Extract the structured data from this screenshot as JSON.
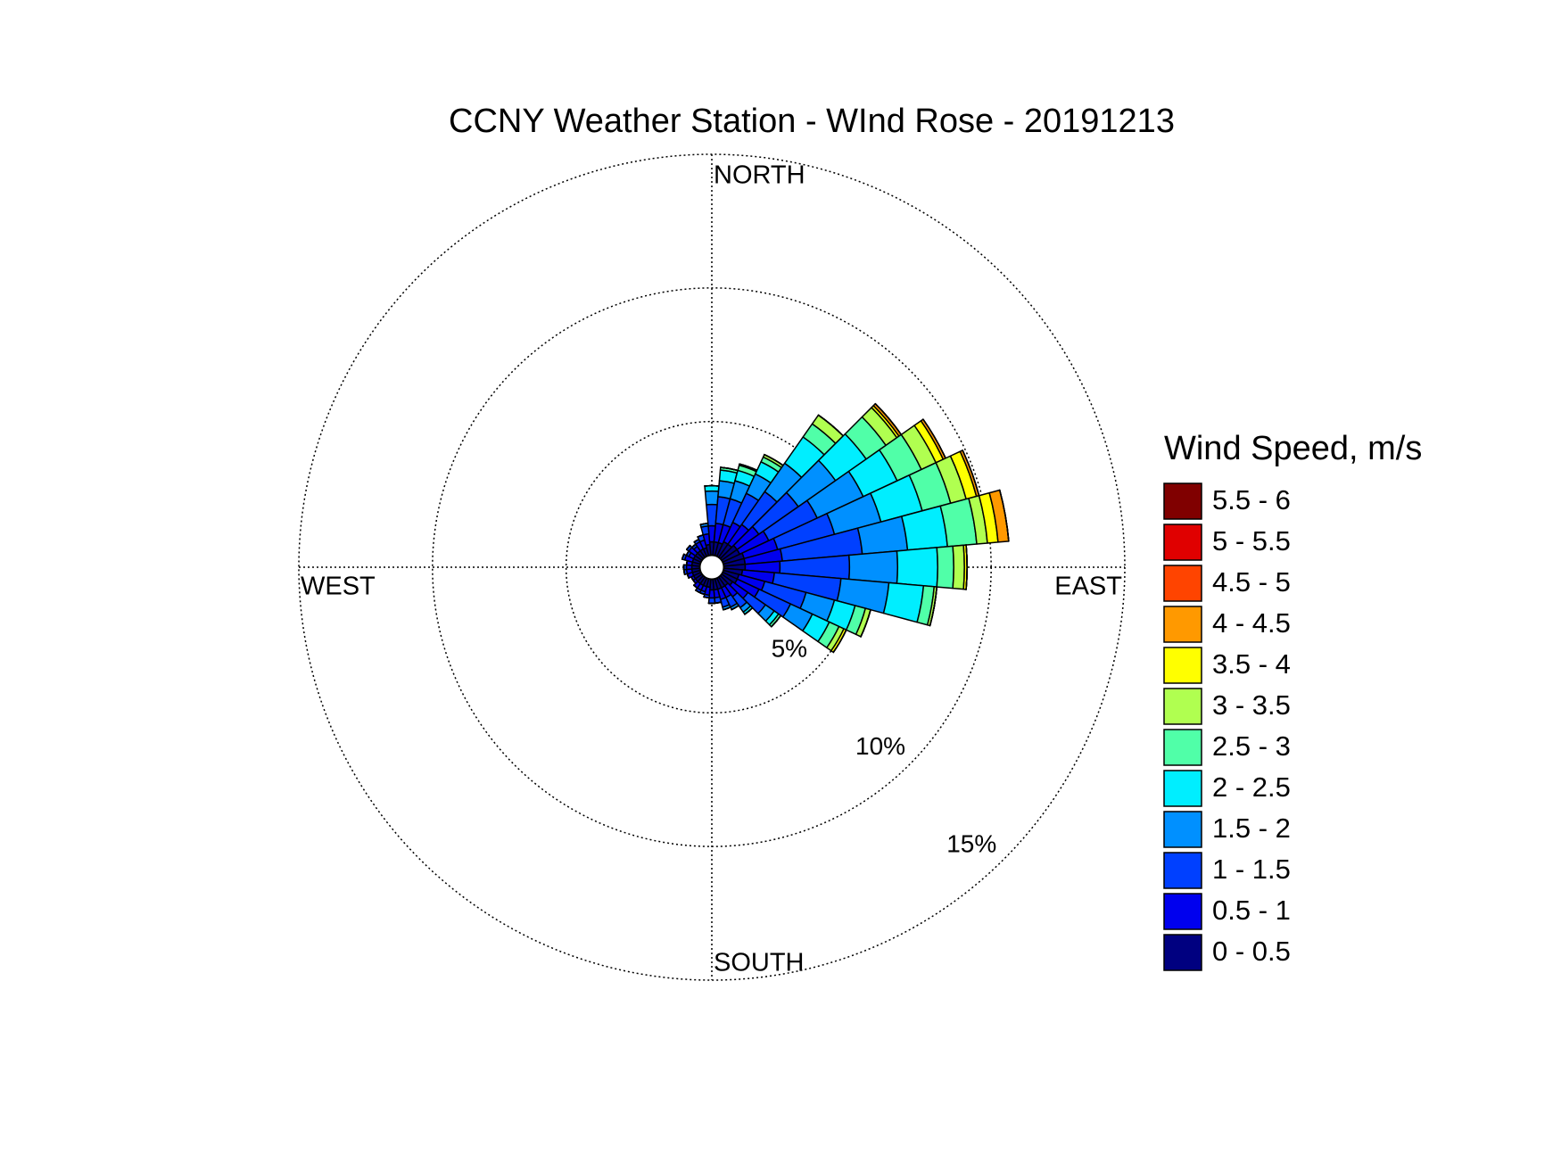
{
  "chart_data": {
    "type": "windrose",
    "title": "CCNY Weather Station - WInd Rose - 20191213",
    "direction_labels": {
      "north": "NORTH",
      "east": "EAST",
      "south": "SOUTH",
      "west": "WEST"
    },
    "legend_title": "Wind Speed, m/s",
    "theta": [
      0,
      10,
      20,
      30,
      40,
      50,
      60,
      70,
      80,
      90,
      100,
      110,
      120,
      130,
      140,
      150,
      160,
      170,
      180,
      190,
      200,
      210,
      220,
      230,
      240,
      250,
      260,
      270,
      280,
      290,
      300,
      310,
      320,
      330,
      340,
      350
    ],
    "rlim": [
      0,
      15
    ],
    "rticks": [
      {
        "value": 5,
        "label": "5%"
      },
      {
        "value": 10,
        "label": "10%"
      },
      {
        "value": 15,
        "label": "15%"
      }
    ],
    "grid": true,
    "series": [
      {
        "name": "0 - 0.5",
        "color": "#000080",
        "values": [
          0.5,
          0.5,
          0.5,
          0.6,
          0.6,
          0.7,
          0.7,
          0.8,
          0.8,
          0.8,
          0.7,
          0.6,
          0.6,
          0.5,
          0.4,
          0.4,
          0.4,
          0.4,
          0.4,
          0.3,
          0.3,
          0.3,
          0.3,
          0.3,
          0.3,
          0.3,
          0.3,
          0.3,
          0.3,
          0.3,
          0.3,
          0.3,
          0.3,
          0.3,
          0.3,
          0.4
        ]
      },
      {
        "name": "0.5 - 1",
        "color": "#0000ee",
        "values": [
          0.6,
          0.7,
          0.7,
          0.8,
          0.9,
          1.0,
          1.2,
          1.3,
          1.4,
          1.3,
          1.2,
          1.0,
          0.9,
          0.7,
          0.5,
          0.4,
          0.4,
          0.3,
          0.3,
          0.3,
          0.2,
          0.2,
          0.2,
          0.1,
          0.1,
          0.2,
          0.2,
          0.2,
          0.2,
          0.3,
          0.2,
          0.3,
          0.2,
          0.3,
          0.3,
          0.4
        ]
      },
      {
        "name": "1 - 1.5",
        "color": "#0040ff",
        "values": [
          0.8,
          1.0,
          1.0,
          1.2,
          1.5,
          1.8,
          2.0,
          2.2,
          3.0,
          2.6,
          2.5,
          1.6,
          1.3,
          0.8,
          0.5,
          0.4,
          0.3,
          0.2,
          0.2,
          0.1,
          0.1,
          0.1,
          0,
          0,
          0,
          0,
          0.1,
          0.1,
          0,
          0.1,
          0.1,
          0.1,
          0.1,
          0.1,
          0.2,
          0.3
        ]
      },
      {
        "name": "1.5 - 2",
        "color": "#0090ff",
        "values": [
          0.5,
          0.6,
          0.7,
          0.8,
          1.3,
          1.7,
          1.9,
          1.8,
          1.7,
          1.8,
          1.8,
          1.1,
          0.9,
          0.4,
          0.2,
          0.1,
          0.1,
          0,
          0,
          0,
          0,
          0,
          0,
          0,
          0,
          0,
          0,
          0,
          0,
          0,
          0,
          0,
          0,
          0,
          0,
          0.1
        ]
      },
      {
        "name": "2 - 2.5",
        "color": "#00eeff",
        "values": [
          0.2,
          0.4,
          0.4,
          0.5,
          1.2,
          1.4,
          1.4,
          1.6,
          1.5,
          1.5,
          1.3,
          0.8,
          0.7,
          0.2,
          0.1,
          0,
          0,
          0,
          0,
          0,
          0,
          0,
          0,
          0,
          0,
          0,
          0,
          0,
          0,
          0,
          0,
          0,
          0,
          0,
          0,
          0
        ]
      },
      {
        "name": "2.5 - 3",
        "color": "#50ffa8",
        "values": [
          0,
          0.1,
          0.2,
          0.2,
          0.6,
          0.9,
          1.0,
          1.1,
          1.1,
          0.6,
          0.4,
          0.4,
          0.4,
          0.1,
          0,
          0,
          0,
          0,
          0,
          0,
          0,
          0,
          0,
          0,
          0,
          0,
          0,
          0,
          0,
          0,
          0,
          0,
          0,
          0,
          0,
          0
        ]
      },
      {
        "name": "3 - 3.5",
        "color": "#b0ff50",
        "values": [
          0,
          0,
          0.05,
          0.1,
          0.4,
          0.5,
          0.6,
          0.6,
          0.4,
          0.4,
          0.1,
          0.2,
          0.2,
          0,
          0,
          0,
          0,
          0,
          0,
          0,
          0,
          0,
          0,
          0,
          0,
          0,
          0,
          0,
          0,
          0,
          0,
          0,
          0,
          0,
          0,
          0
        ]
      },
      {
        "name": "3.5 - 4",
        "color": "#ffff00",
        "values": [
          0,
          0,
          0,
          0,
          0,
          0.1,
          0.3,
          0.4,
          0.4,
          0.1,
          0,
          0,
          0.1,
          0,
          0,
          0,
          0,
          0,
          0,
          0,
          0,
          0,
          0,
          0,
          0,
          0,
          0,
          0,
          0,
          0,
          0,
          0,
          0,
          0,
          0,
          0
        ]
      },
      {
        "name": "4 - 4.5",
        "color": "#ff9900",
        "values": [
          0,
          0,
          0,
          0,
          0,
          0.1,
          0.1,
          0.1,
          0.4,
          0,
          0,
          0,
          0,
          0,
          0,
          0,
          0,
          0,
          0,
          0,
          0,
          0,
          0,
          0,
          0,
          0,
          0,
          0,
          0,
          0,
          0,
          0,
          0,
          0,
          0,
          0
        ]
      },
      {
        "name": "4.5 - 5",
        "color": "#ff4400",
        "values": [
          0,
          0,
          0,
          0,
          0,
          0,
          0,
          0,
          0,
          0,
          0,
          0,
          0,
          0,
          0,
          0,
          0,
          0,
          0,
          0,
          0,
          0,
          0,
          0,
          0,
          0,
          0,
          0,
          0,
          0,
          0,
          0,
          0,
          0,
          0,
          0
        ]
      },
      {
        "name": "5 - 5.5",
        "color": "#e00000",
        "values": [
          0,
          0,
          0,
          0,
          0,
          0,
          0,
          0,
          0,
          0,
          0,
          0,
          0,
          0,
          0,
          0,
          0,
          0,
          0,
          0,
          0,
          0,
          0,
          0,
          0,
          0,
          0,
          0,
          0,
          0,
          0,
          0,
          0,
          0,
          0,
          0
        ]
      },
      {
        "name": "5.5 - 6",
        "color": "#800000",
        "values": [
          0,
          0,
          0,
          0,
          0,
          0,
          0,
          0,
          0,
          0,
          0,
          0,
          0,
          0,
          0,
          0,
          0,
          0,
          0,
          0,
          0,
          0,
          0,
          0,
          0,
          0,
          0,
          0,
          0,
          0,
          0,
          0,
          0,
          0,
          0,
          0
        ]
      }
    ]
  }
}
